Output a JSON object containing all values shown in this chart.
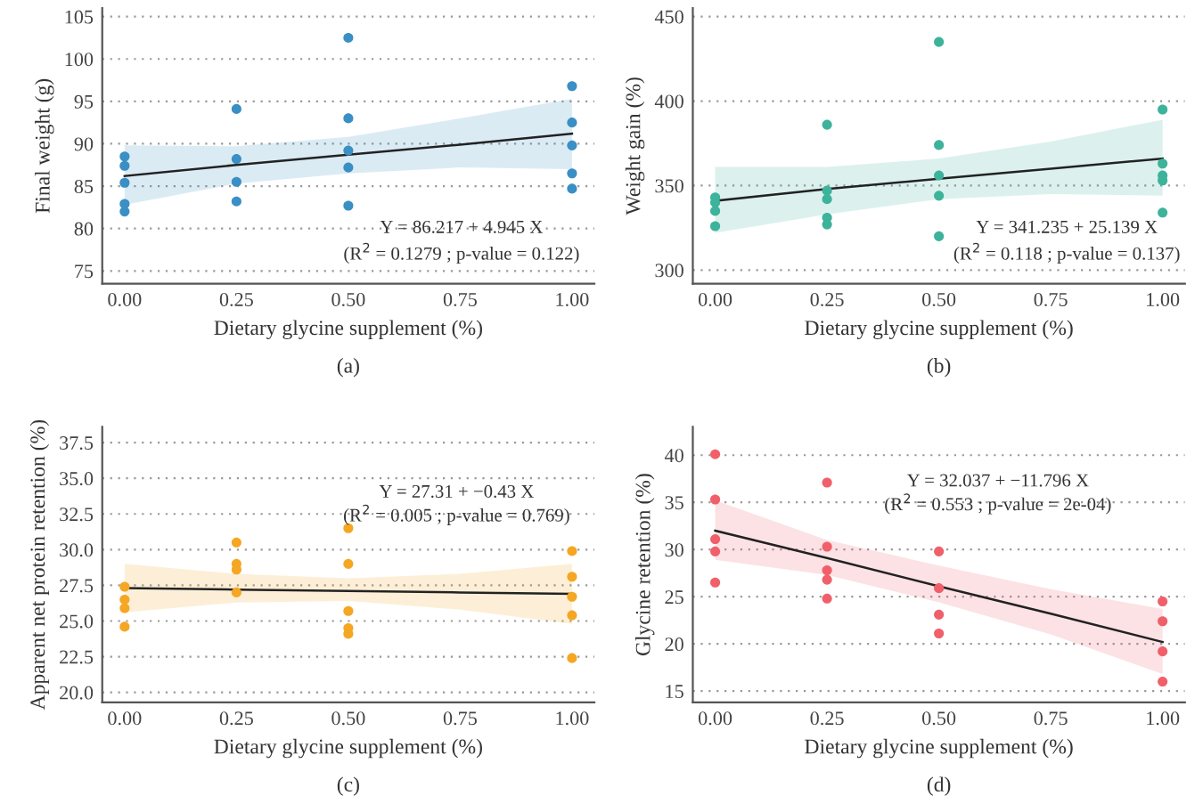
{
  "chart_data": [
    {
      "type": "scatter",
      "xlabel": "Dietary glycine supplement (%)",
      "ylabel": "Final weight (g)",
      "xlim": [
        -0.05,
        1.05
      ],
      "xticks": [
        {
          "value": 0,
          "label": "0.00"
        },
        {
          "value": 0.25,
          "label": "0.25"
        },
        {
          "value": 0.5,
          "label": "0.50"
        },
        {
          "value": 0.75,
          "label": "0.75"
        },
        {
          "value": 1,
          "label": "1.00"
        }
      ],
      "ylim": [
        73.5,
        106
      ],
      "yticks": [
        75,
        80,
        85,
        90,
        95,
        100,
        105
      ],
      "grid": "y",
      "series": [
        {
          "marker": "circle",
          "color": "#3a8fc4",
          "x": [
            0,
            0,
            0,
            0,
            0,
            0.25,
            0.25,
            0.25,
            0.25,
            0.5,
            0.5,
            0.5,
            0.5,
            0.5,
            1,
            1,
            1,
            1,
            1
          ],
          "values": [
            88.5,
            87.4,
            85.4,
            82.9,
            82.0,
            94.1,
            88.2,
            85.5,
            83.2,
            102.5,
            93.0,
            89.2,
            87.2,
            82.7,
            96.8,
            92.5,
            89.8,
            86.5,
            84.7
          ]
        },
        {
          "type": "line",
          "color": "#222222",
          "x": [
            0,
            0.25,
            0.5,
            0.75,
            1
          ],
          "values": [
            86.2,
            87.5,
            88.7,
            89.9,
            91.2
          ],
          "lower": [
            82.8,
            85.3,
            86.5,
            87.2,
            87.0
          ],
          "upper": [
            89.8,
            89.7,
            90.8,
            93.0,
            95.3
          ]
        }
      ],
      "annotations": [
        "Y = 86.217 + 4.945 X",
        "(R$^{2}$ = 0.1279 ; p-value = 0.122)",
        "(a)"
      ]
    },
    {
      "type": "scatter",
      "xlabel": "Dietary glycine supplement (%)",
      "ylabel": "Weight gain (%)",
      "xlim": [
        -0.05,
        1.05
      ],
      "xticks": [
        {
          "value": 0,
          "label": "0.00"
        },
        {
          "value": 0.25,
          "label": "0.25"
        },
        {
          "value": 0.5,
          "label": "0.50"
        },
        {
          "value": 0.75,
          "label": "0.75"
        },
        {
          "value": 1,
          "label": "1.00"
        }
      ],
      "ylim": [
        292,
        455
      ],
      "yticks": [
        300,
        350,
        400,
        450
      ],
      "grid": "y",
      "series": [
        {
          "marker": "circle",
          "color": "#3cb39a",
          "x": [
            0,
            0,
            0,
            0,
            0.25,
            0.25,
            0.25,
            0.25,
            0.25,
            0.5,
            0.5,
            0.5,
            0.5,
            0.5,
            1,
            1,
            1,
            1,
            1
          ],
          "values": [
            343,
            340,
            335,
            326,
            386,
            347,
            342,
            331,
            327,
            435,
            374,
            356,
            344,
            320,
            395,
            363,
            356,
            353,
            334
          ]
        },
        {
          "type": "line",
          "color": "#222222",
          "x": [
            0,
            0.25,
            0.5,
            0.75,
            1
          ],
          "values": [
            341,
            348,
            354,
            360,
            366
          ],
          "lower": [
            322,
            333,
            342,
            345,
            344
          ],
          "upper": [
            361,
            361,
            366,
            376,
            389
          ]
        }
      ],
      "annotations": [
        "Y = 341.235 + 25.139 X",
        "(R$^{2}$ = 0.118 ; p-value = 0.137)",
        "(b)"
      ]
    },
    {
      "type": "scatter",
      "xlabel": "Dietary glycine supplement (%)",
      "ylabel": "Apparent net protein retention (%)",
      "xlim": [
        -0.05,
        1.05
      ],
      "xticks": [
        {
          "value": 0,
          "label": "0.00"
        },
        {
          "value": 0.25,
          "label": "0.25"
        },
        {
          "value": 0.5,
          "label": "0.50"
        },
        {
          "value": 0.75,
          "label": "0.75"
        },
        {
          "value": 1,
          "label": "1.00"
        }
      ],
      "ylim": [
        19.3,
        38.6
      ],
      "yticks": [
        {
          "value": 20,
          "label": "20.0"
        },
        22.5,
        {
          "value": 25,
          "label": "25.0"
        },
        27.5,
        {
          "value": 30,
          "label": "30.0"
        },
        32.5,
        {
          "value": 35,
          "label": "35.0"
        },
        37.5
      ],
      "grid": "y",
      "series": [
        {
          "marker": "circle",
          "color": "#f5a623",
          "x": [
            0,
            0,
            0,
            0,
            0.25,
            0.25,
            0.25,
            0.25,
            0.5,
            0.5,
            0.5,
            0.5,
            0.5,
            1,
            1,
            1,
            1,
            1
          ],
          "values": [
            27.4,
            26.5,
            25.9,
            24.6,
            30.5,
            29.0,
            28.6,
            27.0,
            31.5,
            29.0,
            25.7,
            24.5,
            24.1,
            29.9,
            28.1,
            26.7,
            25.4,
            22.4
          ]
        },
        {
          "type": "line",
          "color": "#222222",
          "x": [
            0,
            0.25,
            0.5,
            0.75,
            1
          ],
          "values": [
            27.3,
            27.2,
            27.1,
            27.0,
            26.9
          ],
          "lower": [
            25.6,
            26.3,
            26.4,
            25.8,
            24.8
          ],
          "upper": [
            29.0,
            28.3,
            28.0,
            28.3,
            29.0
          ]
        }
      ],
      "annotations": [
        "Y = 27.31 + −0.43 X",
        "(R$^{2}$ = 0.005 ; p-value = 0.769)",
        "(c)"
      ]
    },
    {
      "type": "scatter",
      "xlabel": "Dietary glycine supplement (%)",
      "ylabel": "Glycine retention (%)",
      "xlim": [
        -0.05,
        1.05
      ],
      "xticks": [
        {
          "value": 0,
          "label": "0.00"
        },
        {
          "value": 0.25,
          "label": "0.25"
        },
        {
          "value": 0.5,
          "label": "0.50"
        },
        {
          "value": 0.75,
          "label": "0.75"
        },
        {
          "value": 1,
          "label": "1.00"
        }
      ],
      "ylim": [
        13.8,
        43
      ],
      "yticks": [
        15,
        20,
        25,
        30,
        35,
        40
      ],
      "grid": "y",
      "series": [
        {
          "marker": "circle",
          "color": "#f0606a",
          "x": [
            0,
            0,
            0,
            0,
            0,
            0.25,
            0.25,
            0.25,
            0.25,
            0.25,
            0.5,
            0.5,
            0.5,
            0.5,
            1,
            1,
            1,
            1
          ],
          "values": [
            40.1,
            35.3,
            31.1,
            29.8,
            26.5,
            37.1,
            30.3,
            27.8,
            26.8,
            24.8,
            29.8,
            25.9,
            23.1,
            21.1,
            24.5,
            22.4,
            19.2,
            16.0
          ]
        },
        {
          "type": "line",
          "color": "#222222",
          "x": [
            0,
            0.25,
            0.5,
            0.75,
            1
          ],
          "values": [
            32.0,
            29.1,
            26.1,
            23.2,
            20.2
          ],
          "lower": [
            28.9,
            27.3,
            24.4,
            21.0,
            16.8
          ],
          "upper": [
            35.2,
            31.0,
            28.3,
            25.8,
            23.7
          ]
        }
      ],
      "annotations": [
        "Y = 32.037 + −11.796 X",
        "(R$^{2}$ = 0.553 ; p-value = 2e-04)",
        "(d)"
      ]
    }
  ]
}
